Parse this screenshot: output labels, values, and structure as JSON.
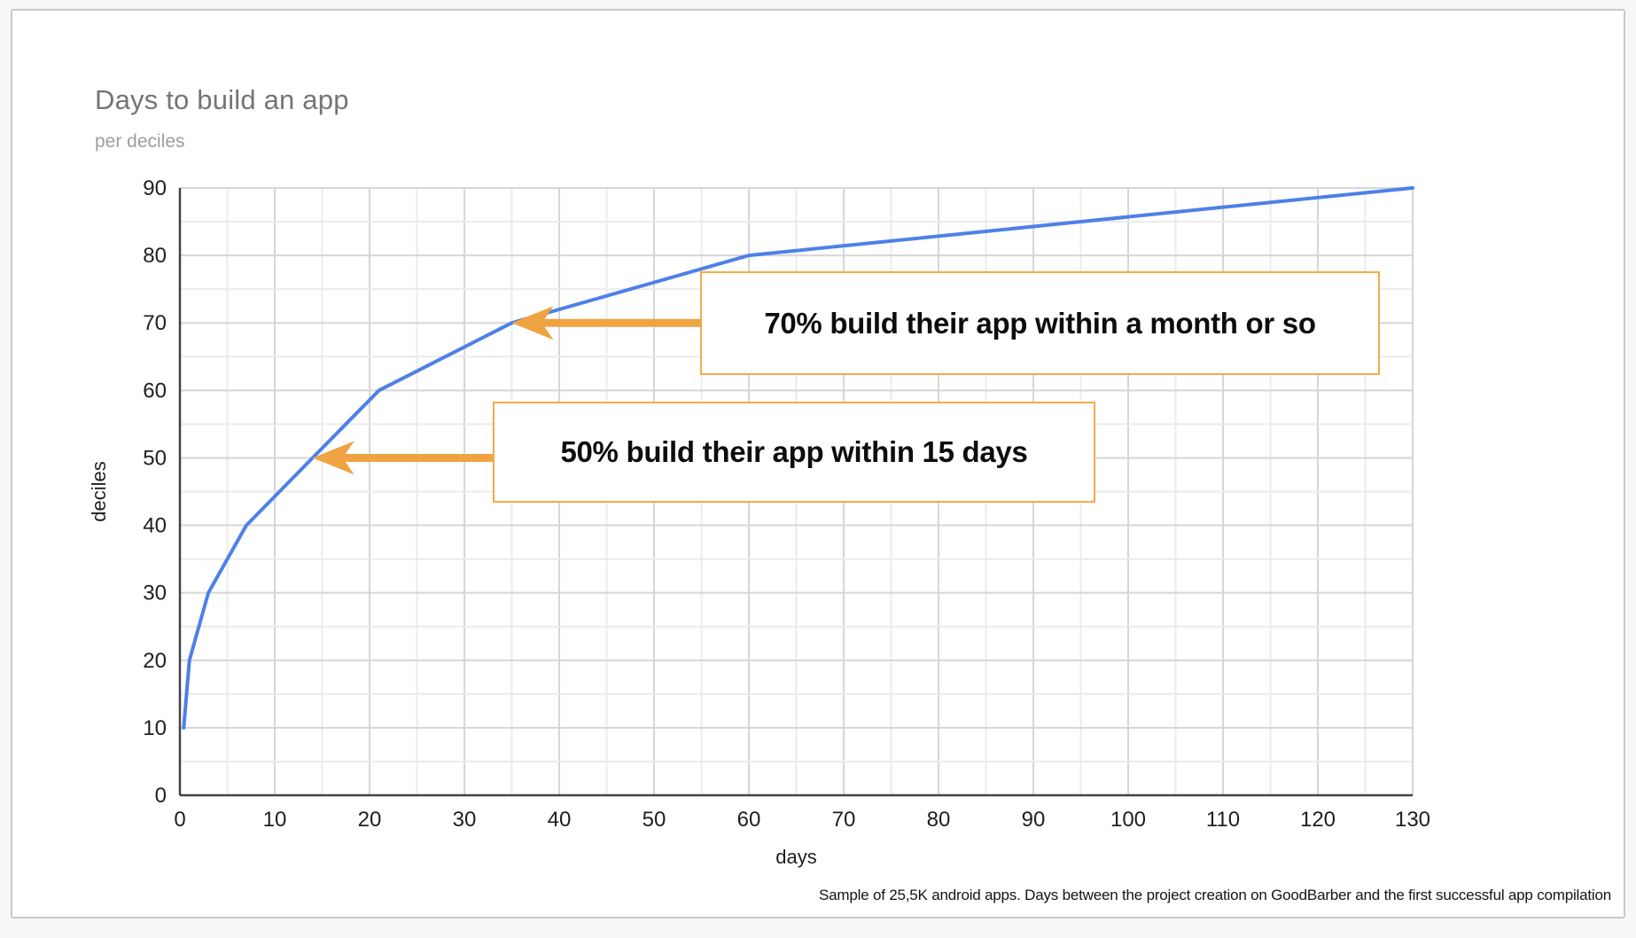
{
  "page": {
    "title": "Days to build an app",
    "subtitle": "per deciles",
    "footer": "Sample of 25,5K android apps. Days between the project creation on GoodBarber and the first successful app compilation"
  },
  "chart_data": {
    "type": "line",
    "title": "Days to build an app",
    "subtitle": "per deciles",
    "xlabel": "days",
    "ylabel": "deciles",
    "xlim": [
      0,
      130
    ],
    "ylim": [
      0,
      90
    ],
    "x_ticks": [
      0,
      10,
      20,
      30,
      40,
      50,
      60,
      70,
      80,
      90,
      100,
      110,
      120,
      130
    ],
    "y_ticks": [
      0,
      10,
      20,
      30,
      40,
      50,
      60,
      70,
      80,
      90
    ],
    "minor_grid_step": 5,
    "grid": true,
    "legend_position": "none",
    "series": [
      {
        "name": "deciles",
        "points": [
          [
            0.4,
            10
          ],
          [
            1,
            20
          ],
          [
            3,
            30
          ],
          [
            7,
            40
          ],
          [
            14,
            50
          ],
          [
            21,
            60
          ],
          [
            35,
            70
          ],
          [
            60,
            80
          ],
          [
            130,
            90
          ]
        ]
      }
    ],
    "annotations": [
      {
        "text": "70% build their app within a month or so",
        "arrow_to": {
          "x": 35,
          "y": 70
        }
      },
      {
        "text": "50% build their app within 15 days",
        "arrow_to": {
          "x": 14,
          "y": 50
        }
      }
    ]
  },
  "colors": {
    "line": "#4e80e8",
    "arrow": "#f0a342",
    "annotation_border": "#f5ab49",
    "grid_minor": "#ebebeb",
    "grid_major": "#d6d6d6",
    "axis": "#424242",
    "tick_label": "#1f1f1f",
    "axis_title": "#1f1f1f",
    "title": "#757575",
    "subtitle": "#9e9e9e"
  }
}
